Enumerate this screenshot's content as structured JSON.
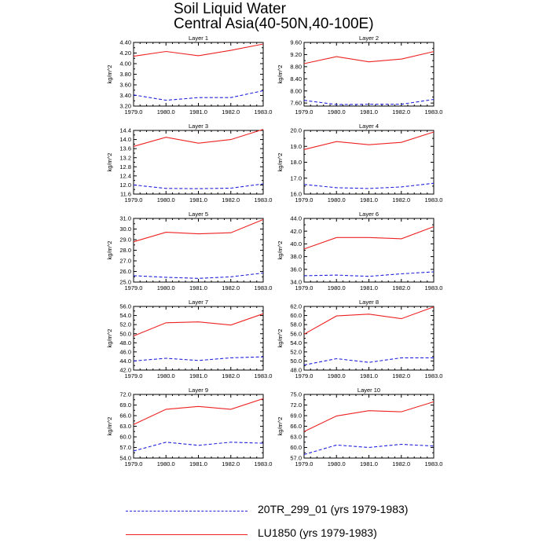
{
  "title": {
    "line1": "Soil Liquid Water",
    "line2": "Central Asia(40-50N,40-100E)"
  },
  "legend": {
    "series1_label": "20TR_299_01 (yrs 1979-1983)",
    "series2_label": "LU1850 (yrs 1979-1983)"
  },
  "colors": {
    "series1": "#2222dd",
    "series2": "#ee2222"
  },
  "chart_data": [
    {
      "type": "line",
      "title": "Layer 1",
      "ylabel": "kg/m^2",
      "x": [
        1979,
        1980,
        1981,
        1982,
        1983
      ],
      "xticks": [
        "1979.0",
        "1980.0",
        "1981.0",
        "1982.0",
        "1983.0"
      ],
      "ylim": [
        3.2,
        4.4
      ],
      "yticks": [
        "3.20",
        "3.40",
        "3.60",
        "3.80",
        "4.00",
        "4.20",
        "4.40"
      ],
      "series": [
        {
          "name": "20TR_299_01 (yrs 1979-1983)",
          "style": "dashed",
          "values": [
            3.41,
            3.31,
            3.36,
            3.36,
            3.49
          ]
        },
        {
          "name": "LU1850 (yrs 1979-1983)",
          "style": "solid",
          "values": [
            4.14,
            4.23,
            4.15,
            4.25,
            4.37
          ]
        }
      ]
    },
    {
      "type": "line",
      "title": "Layer 2",
      "ylabel": "kg/m^2",
      "x": [
        1979,
        1980,
        1981,
        1982,
        1983
      ],
      "xticks": [
        "1979.0",
        "1980.0",
        "1981.0",
        "1982.0",
        "1983.0"
      ],
      "ylim": [
        7.5,
        9.6
      ],
      "yticks": [
        "7.60",
        "8.00",
        "8.40",
        "8.80",
        "9.20",
        "9.60"
      ],
      "series": [
        {
          "name": "20TR_299_01 (yrs 1979-1983)",
          "style": "dashed",
          "values": [
            7.69,
            7.55,
            7.56,
            7.56,
            7.72
          ]
        },
        {
          "name": "LU1850 (yrs 1979-1983)",
          "style": "solid",
          "values": [
            8.9,
            9.13,
            8.96,
            9.05,
            9.3
          ]
        }
      ]
    },
    {
      "type": "line",
      "title": "Layer 3",
      "ylabel": "kg/m^2",
      "x": [
        1979,
        1980,
        1981,
        1982,
        1983
      ],
      "xticks": [
        "1979.0",
        "1980.0",
        "1981.0",
        "1982.0",
        "1983.0"
      ],
      "ylim": [
        11.6,
        14.4
      ],
      "yticks": [
        "11.6",
        "12.0",
        "12.4",
        "12.8",
        "13.2",
        "13.6",
        "14.0",
        "14.4"
      ],
      "series": [
        {
          "name": "20TR_299_01 (yrs 1979-1983)",
          "style": "dashed",
          "values": [
            12.0,
            11.85,
            11.84,
            11.86,
            12.05
          ]
        },
        {
          "name": "LU1850 (yrs 1979-1983)",
          "style": "solid",
          "values": [
            13.7,
            14.1,
            13.84,
            14.0,
            14.45
          ]
        }
      ]
    },
    {
      "type": "line",
      "title": "Layer 4",
      "ylabel": "kg/m^2",
      "x": [
        1979,
        1980,
        1981,
        1982,
        1983
      ],
      "xticks": [
        "1979.0",
        "1980.0",
        "1981.0",
        "1982.0",
        "1983.0"
      ],
      "ylim": [
        16.0,
        20.0
      ],
      "yticks": [
        "16.0",
        "17.0",
        "18.0",
        "19.0",
        "20.0"
      ],
      "series": [
        {
          "name": "20TR_299_01 (yrs 1979-1983)",
          "style": "dashed",
          "values": [
            16.6,
            16.4,
            16.35,
            16.45,
            16.68
          ]
        },
        {
          "name": "LU1850 (yrs 1979-1983)",
          "style": "solid",
          "values": [
            18.8,
            19.3,
            19.1,
            19.25,
            19.9
          ]
        }
      ]
    },
    {
      "type": "line",
      "title": "Layer 5",
      "ylabel": "kg/m^2",
      "x": [
        1979,
        1980,
        1981,
        1982,
        1983
      ],
      "xticks": [
        "1979.0",
        "1980.0",
        "1981.0",
        "1982.0",
        "1983.0"
      ],
      "ylim": [
        25.0,
        31.0
      ],
      "yticks": [
        "25.0",
        "26.0",
        "27.0",
        "28.0",
        "29.0",
        "30.0",
        "31.0"
      ],
      "series": [
        {
          "name": "20TR_299_01 (yrs 1979-1983)",
          "style": "dashed",
          "values": [
            25.6,
            25.45,
            25.35,
            25.5,
            25.85
          ]
        },
        {
          "name": "LU1850 (yrs 1979-1983)",
          "style": "solid",
          "values": [
            28.8,
            29.7,
            29.55,
            29.65,
            30.9
          ]
        }
      ]
    },
    {
      "type": "line",
      "title": "Layer 6",
      "ylabel": "kg/m^2",
      "x": [
        1979,
        1980,
        1981,
        1982,
        1983
      ],
      "xticks": [
        "1979.0",
        "1980.0",
        "1981.0",
        "1982.0",
        "1983.0"
      ],
      "ylim": [
        34.0,
        44.0
      ],
      "yticks": [
        "34.0",
        "36.0",
        "38.0",
        "40.0",
        "42.0",
        "44.0"
      ],
      "series": [
        {
          "name": "20TR_299_01 (yrs 1979-1983)",
          "style": "dashed",
          "values": [
            35.0,
            35.1,
            34.9,
            35.3,
            35.6
          ]
        },
        {
          "name": "LU1850 (yrs 1979-1983)",
          "style": "solid",
          "values": [
            39.2,
            41.0,
            41.0,
            40.8,
            42.7
          ]
        }
      ]
    },
    {
      "type": "line",
      "title": "Layer 7",
      "ylabel": "kg/m^2",
      "x": [
        1979,
        1980,
        1981,
        1982,
        1983
      ],
      "xticks": [
        "1979.0",
        "1980.0",
        "1981.0",
        "1982.0",
        "1983.0"
      ],
      "ylim": [
        42.0,
        56.0
      ],
      "yticks": [
        "42.0",
        "44.0",
        "46.0",
        "48.0",
        "50.0",
        "52.0",
        "54.0",
        "56.0"
      ],
      "series": [
        {
          "name": "20TR_299_01 (yrs 1979-1983)",
          "style": "dashed",
          "values": [
            44.0,
            44.6,
            44.1,
            44.7,
            44.9
          ]
        },
        {
          "name": "LU1850 (yrs 1979-1983)",
          "style": "solid",
          "values": [
            49.5,
            52.4,
            52.6,
            51.9,
            54.4
          ]
        }
      ]
    },
    {
      "type": "line",
      "title": "Layer 8",
      "ylabel": "kg/m^2",
      "x": [
        1979,
        1980,
        1981,
        1982,
        1983
      ],
      "xticks": [
        "1979.0",
        "1980.0",
        "1981.0",
        "1982.0",
        "1983.0"
      ],
      "ylim": [
        48.0,
        62.0
      ],
      "yticks": [
        "48.0",
        "50.0",
        "52.0",
        "54.0",
        "56.0",
        "58.0",
        "60.0",
        "62.0"
      ],
      "series": [
        {
          "name": "20TR_299_01 (yrs 1979-1983)",
          "style": "dashed",
          "values": [
            49.1,
            50.5,
            49.7,
            50.7,
            50.7
          ]
        },
        {
          "name": "LU1850 (yrs 1979-1983)",
          "style": "solid",
          "values": [
            55.9,
            59.9,
            60.3,
            59.3,
            61.9
          ]
        }
      ]
    },
    {
      "type": "line",
      "title": "Layer 9",
      "ylabel": "kg/m^2",
      "x": [
        1979,
        1980,
        1981,
        1982,
        1983
      ],
      "xticks": [
        "1979.0",
        "1980.0",
        "1981.0",
        "1982.0",
        "1983.0"
      ],
      "ylim": [
        54.0,
        72.0
      ],
      "yticks": [
        "54.0",
        "57.0",
        "60.0",
        "63.0",
        "66.0",
        "69.0",
        "72.0"
      ],
      "series": [
        {
          "name": "20TR_299_01 (yrs 1979-1983)",
          "style": "dashed",
          "values": [
            56.0,
            58.5,
            57.6,
            58.5,
            58.2
          ]
        },
        {
          "name": "LU1850 (yrs 1979-1983)",
          "style": "solid",
          "values": [
            63.5,
            67.8,
            68.6,
            67.8,
            70.8
          ]
        }
      ]
    },
    {
      "type": "line",
      "title": "Layer 10",
      "ylabel": "kg/m^2",
      "x": [
        1979,
        1980,
        1981,
        1982,
        1983
      ],
      "xticks": [
        "1979.0",
        "1980.0",
        "1981.0",
        "1982.0",
        "1983.0"
      ],
      "ylim": [
        57.0,
        75.0
      ],
      "yticks": [
        "57.0",
        "60.0",
        "63.0",
        "66.0",
        "69.0",
        "72.0",
        "75.0"
      ],
      "series": [
        {
          "name": "20TR_299_01 (yrs 1979-1983)",
          "style": "dashed",
          "values": [
            58.0,
            60.7,
            60.0,
            60.9,
            60.4
          ]
        },
        {
          "name": "LU1850 (yrs 1979-1983)",
          "style": "solid",
          "values": [
            64.5,
            68.9,
            70.4,
            70.1,
            72.9
          ]
        }
      ]
    }
  ]
}
